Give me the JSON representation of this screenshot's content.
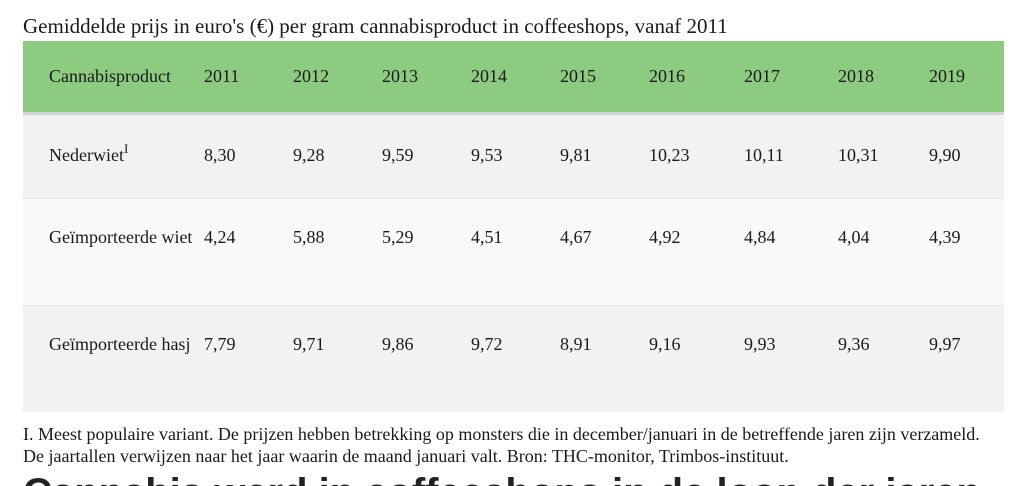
{
  "caption": "Gemiddelde prijs in euro's (€) per gram cannabisproduct in coffeeshops, vanaf 2011",
  "table": {
    "header_label": "Cannabisproduct",
    "years": [
      "2011",
      "2012",
      "2013",
      "2014",
      "2015",
      "2016",
      "2017",
      "2018",
      "2019"
    ],
    "rows": [
      {
        "product": "Nederwiet",
        "sup": "I",
        "values": [
          "8,30",
          "9,28",
          "9,59",
          "9,53",
          "9,81",
          "10,23",
          "10,11",
          "10,31",
          "9,90"
        ]
      },
      {
        "product": "Geïmporteerde wiet",
        "values": [
          "4,24",
          "5,88",
          "5,29",
          "4,51",
          "4,67",
          "4,92",
          "4,84",
          "4,04",
          "4,39"
        ]
      },
      {
        "product": "Geïmporteerde hasj",
        "values": [
          "7,79",
          "9,71",
          "9,86",
          "9,72",
          "8,91",
          "9,16",
          "9,93",
          "9,36",
          "9,97"
        ]
      }
    ]
  },
  "footnote": "I. Meest populaire variant. De prijzen hebben betrekking op monsters die in december/januari in de betreffende jaren zijn verzameld. De jaartallen verwijzen naar het jaar waarin de maand januari valt. Bron: THC-monitor, Trimbos-instituut.",
  "next_heading": "Cannabis werd in coffeeshops in de loop der jaren"
}
